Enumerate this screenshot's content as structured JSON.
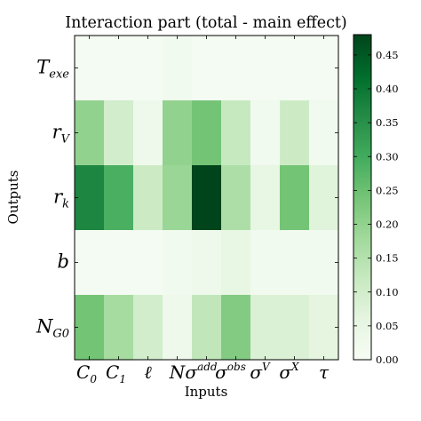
{
  "chart_data": {
    "type": "heatmap",
    "title": "Interaction part (total - main effect)",
    "xlabel": "Inputs",
    "ylabel": "Outputs",
    "x_categories": [
      {
        "base": "C",
        "sub": "0",
        "sup": ""
      },
      {
        "base": "C",
        "sub": "1",
        "sup": ""
      },
      {
        "base": "ℓ",
        "sub": "",
        "sup": ""
      },
      {
        "base": "N",
        "sub": "",
        "sup": ""
      },
      {
        "base": "σ",
        "sub": "",
        "sup": "add"
      },
      {
        "base": "σ",
        "sub": "",
        "sup": "obs"
      },
      {
        "base": "σ",
        "sub": "",
        "sup": "V"
      },
      {
        "base": "σ",
        "sub": "",
        "sup": "X"
      },
      {
        "base": "τ",
        "sub": "",
        "sup": ""
      }
    ],
    "y_categories": [
      {
        "base": "T",
        "sub": "exe",
        "sup": ""
      },
      {
        "base": "r",
        "sub": "V",
        "sup": ""
      },
      {
        "base": "r",
        "sub": "k",
        "sup": ""
      },
      {
        "base": "b",
        "sub": "",
        "sup": ""
      },
      {
        "base": "N",
        "sub": "G0",
        "sup": ""
      }
    ],
    "values": [
      [
        0.01,
        0.01,
        0.01,
        0.02,
        0.01,
        0.01,
        0.01,
        0.01,
        0.01
      ],
      [
        0.2,
        0.1,
        0.03,
        0.2,
        0.24,
        0.12,
        0.02,
        0.11,
        0.02
      ],
      [
        0.37,
        0.29,
        0.11,
        0.19,
        0.48,
        0.16,
        0.05,
        0.24,
        0.07
      ],
      [
        0.01,
        0.01,
        0.01,
        0.02,
        0.03,
        0.05,
        0.02,
        0.02,
        0.02
      ],
      [
        0.24,
        0.17,
        0.1,
        0.03,
        0.13,
        0.22,
        0.08,
        0.08,
        0.06
      ]
    ],
    "vmin": 0.0,
    "vmax": 0.48,
    "colormap": "Greens",
    "colorbar_ticks": [
      "0.00",
      "0.05",
      "0.10",
      "0.15",
      "0.20",
      "0.25",
      "0.30",
      "0.35",
      "0.40",
      "0.45"
    ],
    "grid": false
  }
}
